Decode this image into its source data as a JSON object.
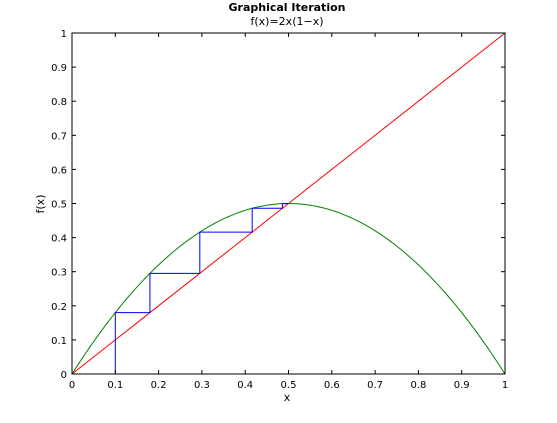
{
  "chart_data": {
    "type": "line",
    "title": "Graphical Iteration",
    "subtitle": "f(x)=2x(1−x)",
    "xlabel": "x",
    "ylabel": "f(x)",
    "xlim": [
      0,
      1
    ],
    "ylim": [
      0,
      1
    ],
    "xticks": [
      0,
      0.1,
      0.2,
      0.3,
      0.4,
      0.5,
      0.6,
      0.7,
      0.8,
      0.9,
      1
    ],
    "yticks": [
      0,
      0.1,
      0.2,
      0.3,
      0.4,
      0.5,
      0.6,
      0.7,
      0.8,
      0.9,
      1
    ],
    "xtick_labels": [
      "0",
      "0.1",
      "0.2",
      "0.3",
      "0.4",
      "0.5",
      "0.6",
      "0.7",
      "0.8",
      "0.9",
      "1"
    ],
    "ytick_labels": [
      "0",
      "0.1",
      "0.2",
      "0.3",
      "0.4",
      "0.5",
      "0.6",
      "0.7",
      "0.8",
      "0.9",
      "1"
    ],
    "grid": false,
    "series": [
      {
        "color": "#ff0000",
        "x": [
          0,
          1
        ],
        "y": [
          0,
          1
        ]
      },
      {
        "color": "#008000",
        "function": "2*x*(1-x)",
        "x": [
          0,
          1
        ]
      },
      {
        "color": "#0000ff",
        "x": [
          0.1,
          0.1,
          0.18,
          0.18,
          0.2952,
          0.2952,
          0.41611,
          0.41611,
          0.48592,
          0.48592,
          0.4996
        ],
        "y": [
          0,
          0.18,
          0.18,
          0.2952,
          0.2952,
          0.41611,
          0.41611,
          0.48592,
          0.48592,
          0.4996,
          0.4996
        ]
      }
    ]
  }
}
